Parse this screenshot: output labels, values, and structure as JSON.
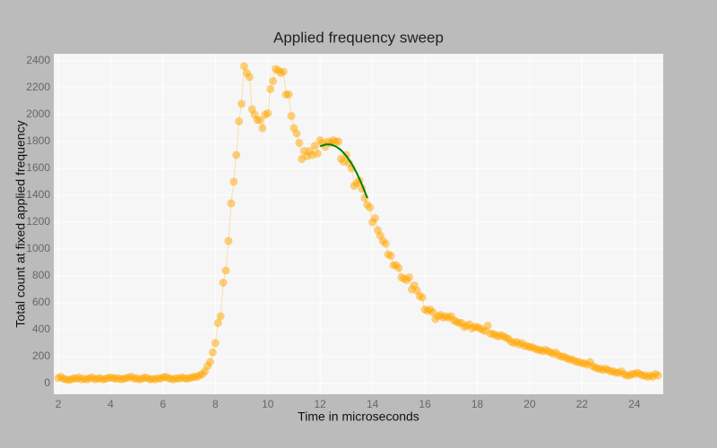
{
  "chart_data": {
    "type": "scatter-line",
    "title": "Applied frequency sweep",
    "x_label": "Time in microseconds",
    "y_label": "Total count at fixed applied frequency",
    "xlim": [
      1.83,
      25.1
    ],
    "ylim": [
      -80,
      2453
    ],
    "xticks": [
      2,
      4,
      6,
      8,
      10,
      12,
      14,
      16,
      18,
      20,
      22,
      24
    ],
    "yticks": [
      0,
      200,
      400,
      600,
      800,
      1000,
      1200,
      1400,
      1600,
      1800,
      2000,
      2200,
      2400
    ],
    "grid": true,
    "series": [
      {
        "color": "#ffa500",
        "mode": "markers+lines",
        "x": [
          2.0,
          2.1,
          2.2,
          2.3,
          2.4,
          2.5,
          2.6,
          2.7,
          2.8,
          2.9,
          3.0,
          3.1,
          3.2,
          3.3,
          3.4,
          3.5,
          3.6,
          3.7,
          3.8,
          3.9,
          4.0,
          4.1,
          4.2,
          4.3,
          4.4,
          4.5,
          4.6,
          4.7,
          4.8,
          4.9,
          5.0,
          5.1,
          5.2,
          5.3,
          5.4,
          5.5,
          5.6,
          5.7,
          5.8,
          5.9,
          6.0,
          6.1,
          6.2,
          6.3,
          6.4,
          6.5,
          6.6,
          6.7,
          6.8,
          6.9,
          7.0,
          7.1,
          7.2,
          7.3,
          7.4,
          7.5,
          7.6,
          7.7,
          7.8,
          7.9,
          8.0,
          8.1,
          8.2,
          8.3,
          8.4,
          8.5,
          8.6,
          8.7,
          8.8,
          8.9,
          9.0,
          9.1,
          9.2,
          9.3,
          9.4,
          9.5,
          9.6,
          9.7,
          9.8,
          9.9,
          10.0,
          10.1,
          10.2,
          10.3,
          10.4,
          10.5,
          10.6,
          10.7,
          10.8,
          10.9,
          11.0,
          11.1,
          11.2,
          11.3,
          11.4,
          11.5,
          11.6,
          11.7,
          11.8,
          11.9,
          12.0,
          12.1,
          12.2,
          12.3,
          12.4,
          12.5,
          12.6,
          12.7,
          12.8,
          12.9,
          13.0,
          13.1,
          13.2,
          13.3,
          13.4,
          13.5,
          13.6,
          13.7,
          13.8,
          13.9,
          14.0,
          14.1,
          14.2,
          14.3,
          14.4,
          14.5,
          14.6,
          14.7,
          14.8,
          14.9,
          15.0,
          15.1,
          15.2,
          15.3,
          15.4,
          15.5,
          15.6,
          15.7,
          15.8,
          15.9,
          16.0,
          16.1,
          16.2,
          16.3,
          16.4,
          16.5,
          16.6,
          16.7,
          16.8,
          16.9,
          17.0,
          17.1,
          17.2,
          17.3,
          17.4,
          17.5,
          17.6,
          17.7,
          17.8,
          17.9,
          18.0,
          18.1,
          18.2,
          18.3,
          18.4,
          18.5,
          18.6,
          18.7,
          18.8,
          18.9,
          19.0,
          19.1,
          19.2,
          19.3,
          19.4,
          19.5,
          19.6,
          19.7,
          19.8,
          19.9,
          20.0,
          20.1,
          20.2,
          20.3,
          20.4,
          20.5,
          20.6,
          20.7,
          20.8,
          20.9,
          21.0,
          21.1,
          21.2,
          21.3,
          21.4,
          21.5,
          21.6,
          21.7,
          21.8,
          21.9,
          22.0,
          22.1,
          22.2,
          22.3,
          22.4,
          22.5,
          22.6,
          22.7,
          22.8,
          22.9,
          23.0,
          23.1,
          23.2,
          23.3,
          23.4,
          23.5,
          23.6,
          23.7,
          23.8,
          23.9,
          24.0,
          24.1,
          24.2,
          24.3,
          24.4,
          24.5,
          24.6,
          24.7,
          24.8,
          24.9
        ],
        "values": [
          40,
          50,
          35,
          30,
          25,
          30,
          40,
          35,
          45,
          30,
          35,
          30,
          40,
          45,
          30,
          35,
          40,
          30,
          35,
          40,
          45,
          40,
          35,
          40,
          30,
          35,
          40,
          45,
          50,
          35,
          40,
          30,
          35,
          45,
          40,
          30,
          35,
          30,
          40,
          35,
          45,
          50,
          40,
          35,
          30,
          40,
          35,
          45,
          40,
          35,
          40,
          45,
          50,
          50,
          60,
          70,
          90,
          130,
          160,
          230,
          300,
          450,
          500,
          750,
          840,
          1060,
          1340,
          1500,
          1700,
          1950,
          2080,
          2360,
          2310,
          2280,
          2040,
          2000,
          1960,
          1960,
          1900,
          2000,
          2010,
          2190,
          2250,
          2340,
          2330,
          2310,
          2320,
          2150,
          2150,
          1990,
          1900,
          1860,
          1790,
          1670,
          1730,
          1690,
          1730,
          1700,
          1770,
          1710,
          1810,
          1790,
          1760,
          1800,
          1790,
          1810,
          1800,
          1800,
          1670,
          1650,
          1700,
          1640,
          1600,
          1470,
          1490,
          1510,
          1450,
          1380,
          1330,
          1310,
          1200,
          1230,
          1140,
          1100,
          1060,
          1040,
          960,
          950,
          880,
          880,
          860,
          790,
          780,
          770,
          790,
          700,
          730,
          690,
          650,
          640,
          550,
          540,
          550,
          530,
          480,
          500,
          510,
          490,
          500,
          490,
          500,
          470,
          460,
          450,
          450,
          420,
          430,
          440,
          410,
          420,
          420,
          410,
          400,
          390,
          430,
          370,
          370,
          360,
          350,
          360,
          350,
          340,
          330,
          310,
          300,
          310,
          290,
          300,
          280,
          280,
          270,
          270,
          260,
          250,
          250,
          240,
          250,
          240,
          230,
          220,
          230,
          210,
          200,
          200,
          190,
          180,
          180,
          170,
          160,
          160,
          150,
          150,
          140,
          160,
          130,
          120,
          110,
          110,
          100,
          110,
          100,
          90,
          90,
          80,
          80,
          90,
          70,
          60,
          60,
          70,
          70,
          80,
          70,
          60,
          60,
          50,
          60,
          50,
          70,
          60
        ]
      },
      {
        "color": "#008000",
        "mode": "lines",
        "x": [
          12.0,
          12.2,
          12.4,
          12.6,
          12.8,
          13.0,
          13.2,
          13.4,
          13.6,
          13.8
        ],
        "values": [
          1764,
          1778,
          1778,
          1764,
          1736,
          1693,
          1636,
          1565,
          1479,
          1380
        ]
      }
    ]
  }
}
